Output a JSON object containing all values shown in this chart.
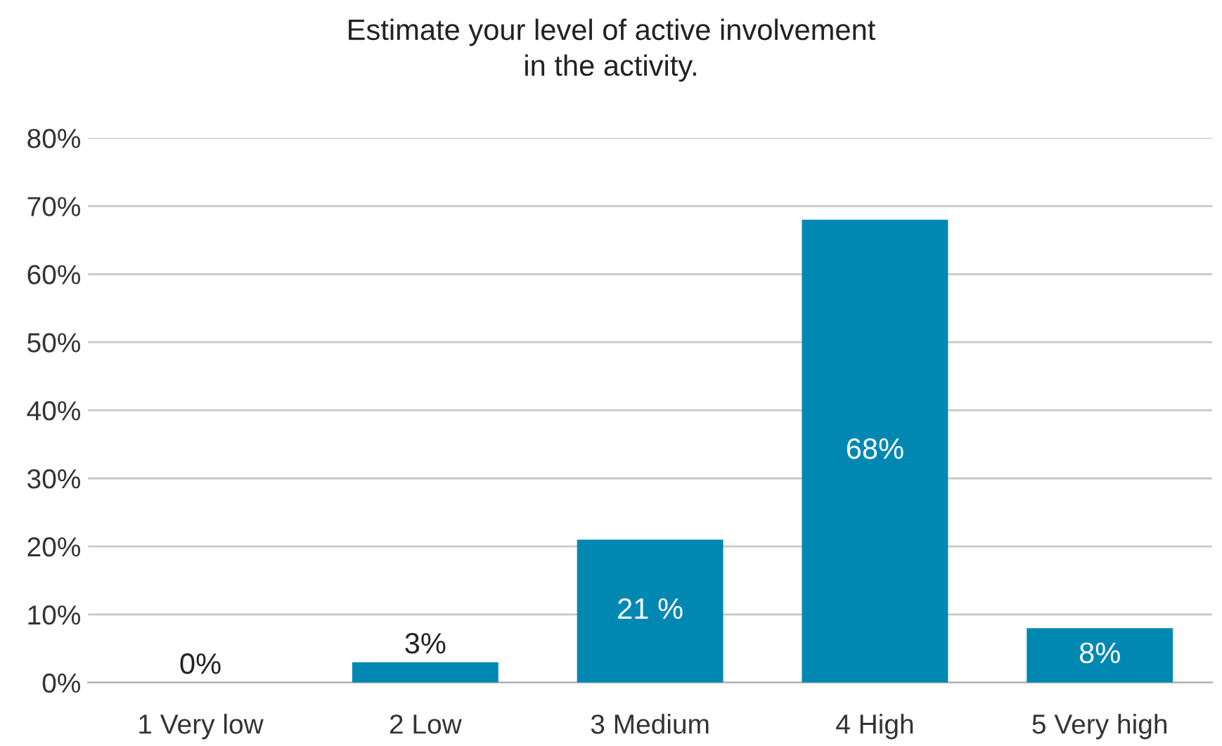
{
  "chart_data": {
    "type": "bar",
    "title": "Estimate your level of active involvement\nin the activity.",
    "categories": [
      "1 Very low",
      "2 Low",
      "3 Medium",
      "4 High",
      "5 Very high"
    ],
    "values": [
      0,
      3,
      21,
      68,
      8
    ],
    "value_labels": [
      "0%",
      "3%",
      "21 %",
      "68%",
      "8%"
    ],
    "color": "#0088b2",
    "ylim": [
      0,
      80
    ],
    "yticks": [
      {
        "value": 0,
        "label": "0%"
      },
      {
        "value": 10,
        "label": "10%"
      },
      {
        "value": 20,
        "label": "20%"
      },
      {
        "value": 30,
        "label": "30%"
      },
      {
        "value": 40,
        "label": "40%"
      },
      {
        "value": 50,
        "label": "50%"
      },
      {
        "value": 60,
        "label": "60%"
      },
      {
        "value": 70,
        "label": "70%"
      },
      {
        "value": 80,
        "label": "80%"
      }
    ],
    "grid": "y"
  }
}
